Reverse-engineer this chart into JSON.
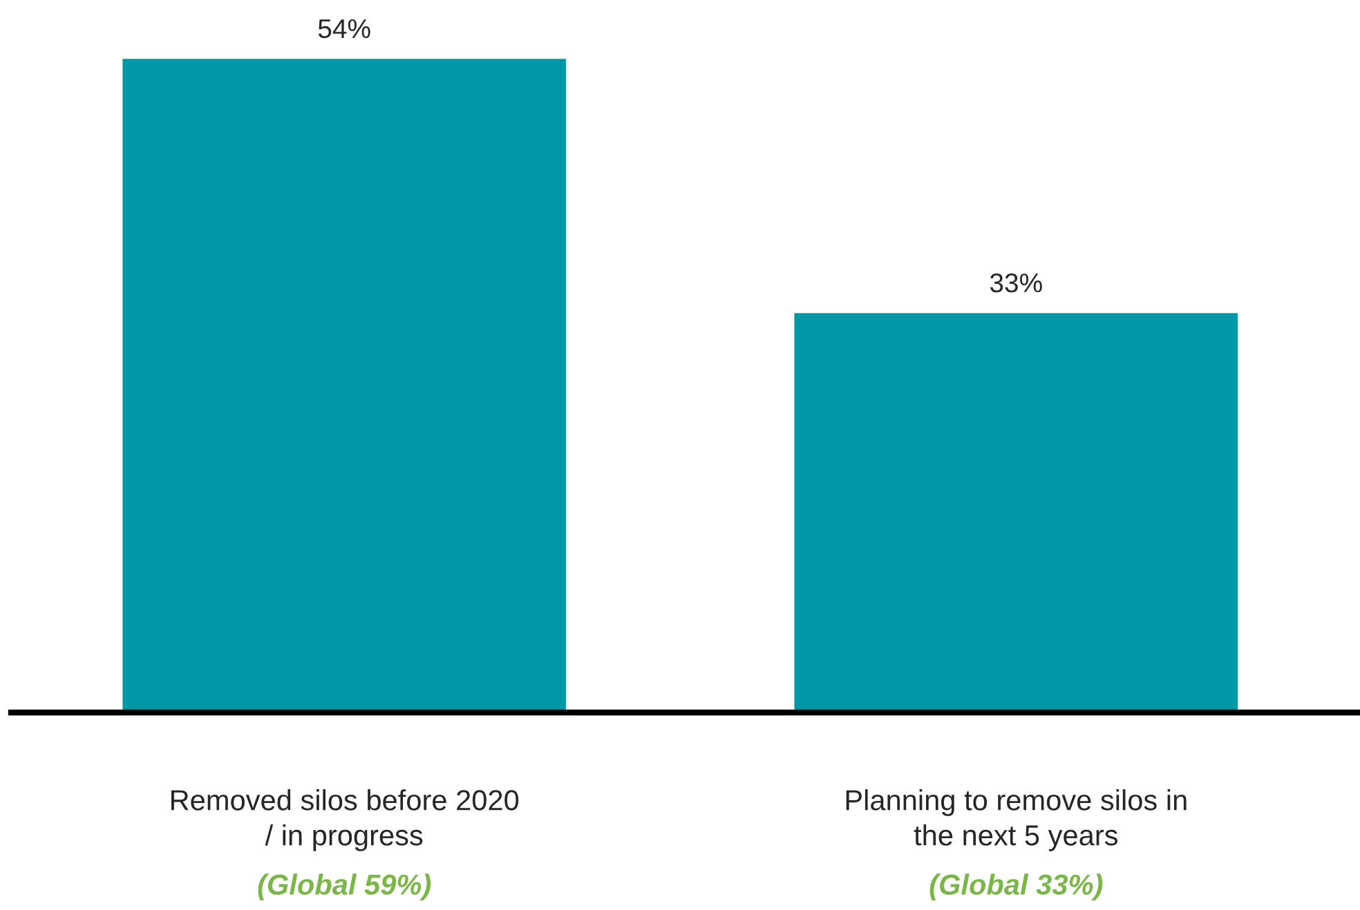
{
  "chart_data": {
    "type": "bar",
    "categories": [
      "Removed silos before 2020\n/ in progress",
      "Planning to remove silos in\nthe next 5 years"
    ],
    "values": [
      54,
      33
    ],
    "color": "#0097a7",
    "value_labels": [
      "54%",
      "33%"
    ],
    "annotations": [
      "(Global 59%)",
      "(Global 33%)"
    ],
    "grid": false,
    "legend": false
  }
}
